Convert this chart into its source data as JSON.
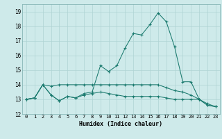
{
  "xlabel": "Humidex (Indice chaleur)",
  "background_color": "#ceeaea",
  "grid_color": "#afd4d4",
  "line_color": "#1a7a6e",
  "xlim": [
    -0.5,
    23.5
  ],
  "ylim": [
    12,
    19.5
  ],
  "xticks": [
    0,
    1,
    2,
    3,
    4,
    5,
    6,
    7,
    8,
    9,
    10,
    11,
    12,
    13,
    14,
    15,
    16,
    17,
    18,
    19,
    20,
    21,
    22,
    23
  ],
  "yticks": [
    12,
    13,
    14,
    15,
    16,
    17,
    18,
    19
  ],
  "series": [
    [
      13.0,
      13.1,
      14.0,
      13.3,
      12.9,
      13.2,
      13.1,
      13.4,
      13.5,
      15.3,
      14.9,
      15.3,
      16.5,
      17.5,
      17.4,
      18.1,
      18.9,
      18.3,
      16.6,
      14.2,
      14.2,
      13.0,
      12.6,
      12.5
    ],
    [
      13.0,
      13.1,
      14.0,
      13.9,
      14.0,
      14.0,
      14.0,
      14.0,
      14.0,
      14.0,
      14.0,
      14.0,
      14.0,
      14.0,
      14.0,
      14.0,
      14.0,
      13.8,
      13.6,
      13.5,
      13.3,
      13.0,
      12.6,
      12.5
    ],
    [
      13.0,
      13.1,
      14.0,
      13.3,
      12.9,
      13.2,
      13.1,
      13.3,
      13.4,
      13.5,
      13.4,
      13.3,
      13.2,
      13.2,
      13.2,
      13.2,
      13.2,
      13.1,
      13.0,
      13.0,
      13.0,
      13.0,
      12.7,
      12.5
    ]
  ]
}
